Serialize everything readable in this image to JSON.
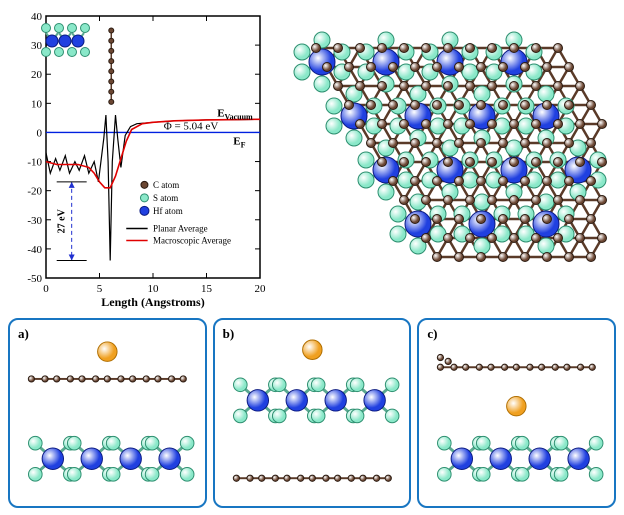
{
  "chart": {
    "type": "line",
    "xlabel": "Length (Angstroms)",
    "ylabel": "",
    "label_fontsize": 12,
    "xlim": [
      0,
      20
    ],
    "ylim": [
      -50,
      40
    ],
    "xticks": [
      0,
      5,
      10,
      15,
      20
    ],
    "yticks": [
      -50,
      -40,
      -30,
      -20,
      -10,
      0,
      10,
      20,
      30,
      40
    ],
    "background_color": "#ffffff",
    "border_color": "#000000",
    "zero_line_color": "#0020e0",
    "series": [
      {
        "name": "Planar Average",
        "color": "#000000",
        "line_width": 1.2,
        "x": [
          0,
          0.4,
          0.9,
          1.3,
          1.8,
          2.2,
          2.7,
          3.1,
          3.6,
          4.0,
          4.5,
          4.9,
          5.4,
          5.6,
          5.8,
          6.0,
          6.2,
          6.5,
          6.7,
          7.0,
          7.4,
          7.9,
          8.5,
          10,
          12,
          15,
          18,
          20
        ],
        "y": [
          -7,
          -14,
          -9,
          -13,
          -8,
          -14,
          -10,
          -13,
          -8,
          -14,
          -10,
          -17,
          -2,
          6,
          -10,
          -44,
          -10,
          6,
          -2,
          -12,
          -1,
          2,
          3,
          3.5,
          4,
          4.3,
          4.4,
          4.5
        ]
      },
      {
        "name": "Macroscopic Average",
        "color": "#e00000",
        "line_width": 1.6,
        "x": [
          0,
          1,
          2,
          3,
          4,
          4.5,
          5,
          5.5,
          6,
          6.5,
          7,
          7.5,
          8,
          9,
          10,
          12,
          15,
          18,
          20
        ],
        "y": [
          -10,
          -11,
          -11,
          -11,
          -12,
          -14,
          -17,
          -19,
          -19,
          -15,
          -9,
          -3,
          1,
          3,
          3.5,
          4,
          4.3,
          4.4,
          4.5
        ]
      }
    ],
    "annotations": {
      "e_vacuum": "E",
      "e_vacuum_sub": "Vacuum",
      "phi": "Φ = 5.04 eV",
      "e_f": "E",
      "e_f_sub": "F",
      "arrow_label": "27 eV"
    },
    "legend": {
      "position": "lower-right",
      "fontsize": 9,
      "items": [
        {
          "label": "Planar Average",
          "color": "#000000"
        },
        {
          "label": "Macroscopic Average",
          "color": "#e00000"
        }
      ]
    },
    "atom_legend": {
      "items": [
        {
          "label": "C atom",
          "fill": "#6b4632",
          "stroke": "#2a1a10",
          "r": 3.5
        },
        {
          "label": "S atom",
          "fill": "#8ae8c9",
          "stroke": "#2e8f70",
          "r": 4
        },
        {
          "label": "Hf atom",
          "fill": "#2040e0",
          "stroke": "#0b1a80",
          "r": 4.5
        }
      ],
      "fontsize": 9
    }
  },
  "structure3d": {
    "type": "ball-stick-lattice",
    "atoms": {
      "Hf": {
        "color": "#2040e0",
        "stroke": "#0b1a80",
        "r": 13
      },
      "S": {
        "color": "#8ae8c9",
        "stroke": "#2e8f70",
        "r": 8
      },
      "C": {
        "color": "#6b4632",
        "stroke": "#2a1a10",
        "r": 4.5
      }
    },
    "bond_colors": {
      "HfS": "#5aa890",
      "CC": "#5a3a28"
    },
    "bond_width": 3
  },
  "panels": {
    "border_color": "#1876c2",
    "items": [
      {
        "label": "a)",
        "na_top": true,
        "gr_top": true,
        "hfs_top": false
      },
      {
        "label": "b)",
        "na_top": true,
        "gr_top": false,
        "hfs_top": true
      },
      {
        "label": "c)",
        "na_top": false,
        "gr_top": true,
        "hfs_top": false
      }
    ],
    "atoms": {
      "Na": {
        "color": "#f0a020",
        "stroke": "#b06e00",
        "r": 10
      },
      "C": {
        "color": "#6b4632",
        "stroke": "#2a1a10",
        "r": 3.2
      },
      "S": {
        "color": "#8ae8c9",
        "stroke": "#2e8f70",
        "r": 7
      },
      "Hf": {
        "color": "#2040e0",
        "stroke": "#0b1a80",
        "r": 11
      }
    }
  }
}
